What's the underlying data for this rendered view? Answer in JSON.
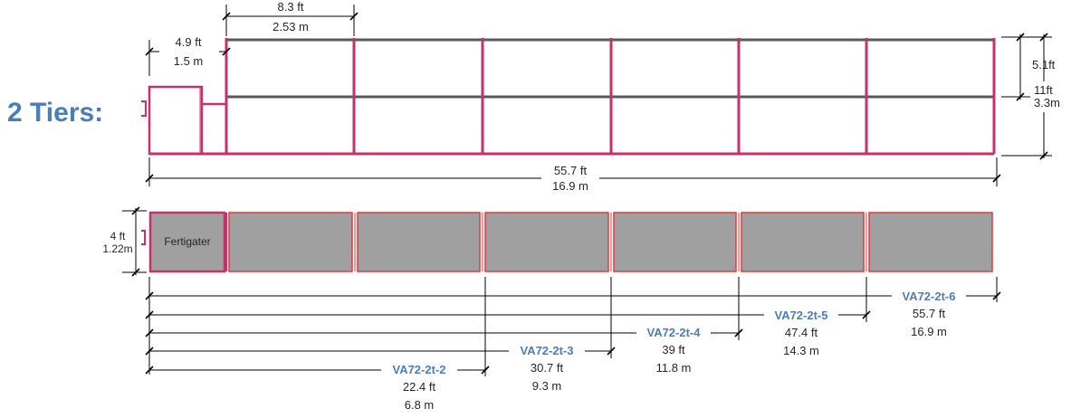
{
  "title": "2 Tiers:",
  "colors": {
    "frame": "#c8306b",
    "shelf": "#595959",
    "bed_fill": "#a0a0a0",
    "bed_border": "#e03a3a",
    "accent_text": "#4a7ebb"
  },
  "elevation": {
    "bay_width": {
      "ft": "8.3 ft",
      "m": "2.53 m"
    },
    "fertigater_width": {
      "ft": "4.9 ft",
      "m": "1.5 m"
    },
    "tier_spacing": {
      "ft": "5.1ft"
    },
    "total_height": {
      "ft": "11ft",
      "m": "3.3m"
    },
    "total_length": {
      "ft": "55.7 ft",
      "m": "16.9 m"
    }
  },
  "plan": {
    "fertigater_label": "Fertigater",
    "bed_width": {
      "ft": "4 ft",
      "m": "1.22m"
    }
  },
  "models": [
    {
      "name": "VA72-2t-2",
      "ft": "22.4 ft",
      "m": "6.8 m"
    },
    {
      "name": "VA72-2t-3",
      "ft": "30.7 ft",
      "m": "9.3 m"
    },
    {
      "name": "VA72-2t-4",
      "ft": "39 ft",
      "m": "11.8 m"
    },
    {
      "name": "VA72-2t-5",
      "ft": "47.4 ft",
      "m": "14.3 m"
    },
    {
      "name": "VA72-2t-6",
      "ft": "55.7 ft",
      "m": "16.9 m"
    }
  ]
}
